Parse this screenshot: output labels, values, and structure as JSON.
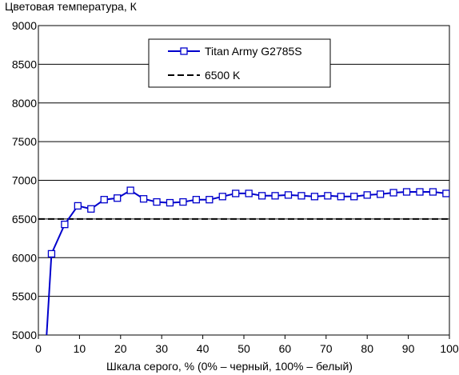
{
  "chart_data": {
    "type": "line",
    "title": "",
    "ylabel": "Цветовая температура, К",
    "xlabel": "Шкала серого, % (0% – черный, 100% – белый)",
    "xlim": [
      0,
      100
    ],
    "ylim": [
      5000,
      9000
    ],
    "x_ticks": [
      0,
      10,
      20,
      30,
      40,
      50,
      60,
      70,
      80,
      90,
      100
    ],
    "y_ticks": [
      5000,
      5500,
      6000,
      6500,
      7000,
      7500,
      8000,
      8500,
      9000
    ],
    "grid": "horizontal",
    "legend_position": "top-center",
    "series": [
      {
        "name": "Titan Army G2785S",
        "color": "#0000cc",
        "marker": "square",
        "x": [
          2,
          3.2,
          6.4,
          9.6,
          12.8,
          16,
          19.2,
          22.4,
          25.6,
          28.8,
          32,
          35.2,
          38.4,
          41.6,
          44.8,
          48,
          51.2,
          54.4,
          57.6,
          60.8,
          64,
          67.2,
          70.4,
          73.6,
          76.8,
          80,
          83.2,
          86.4,
          89.6,
          92.8,
          96,
          99.2
        ],
        "y": [
          5000,
          6050,
          6430,
          6670,
          6630,
          6750,
          6770,
          6870,
          6760,
          6720,
          6710,
          6720,
          6750,
          6750,
          6790,
          6830,
          6830,
          6800,
          6800,
          6810,
          6800,
          6790,
          6800,
          6790,
          6790,
          6810,
          6820,
          6840,
          6850,
          6850,
          6850,
          6830
        ]
      },
      {
        "name": "6500 K",
        "color": "#000000",
        "style": "dashed",
        "x": [
          0,
          100
        ],
        "y": [
          6500,
          6500
        ]
      }
    ]
  }
}
